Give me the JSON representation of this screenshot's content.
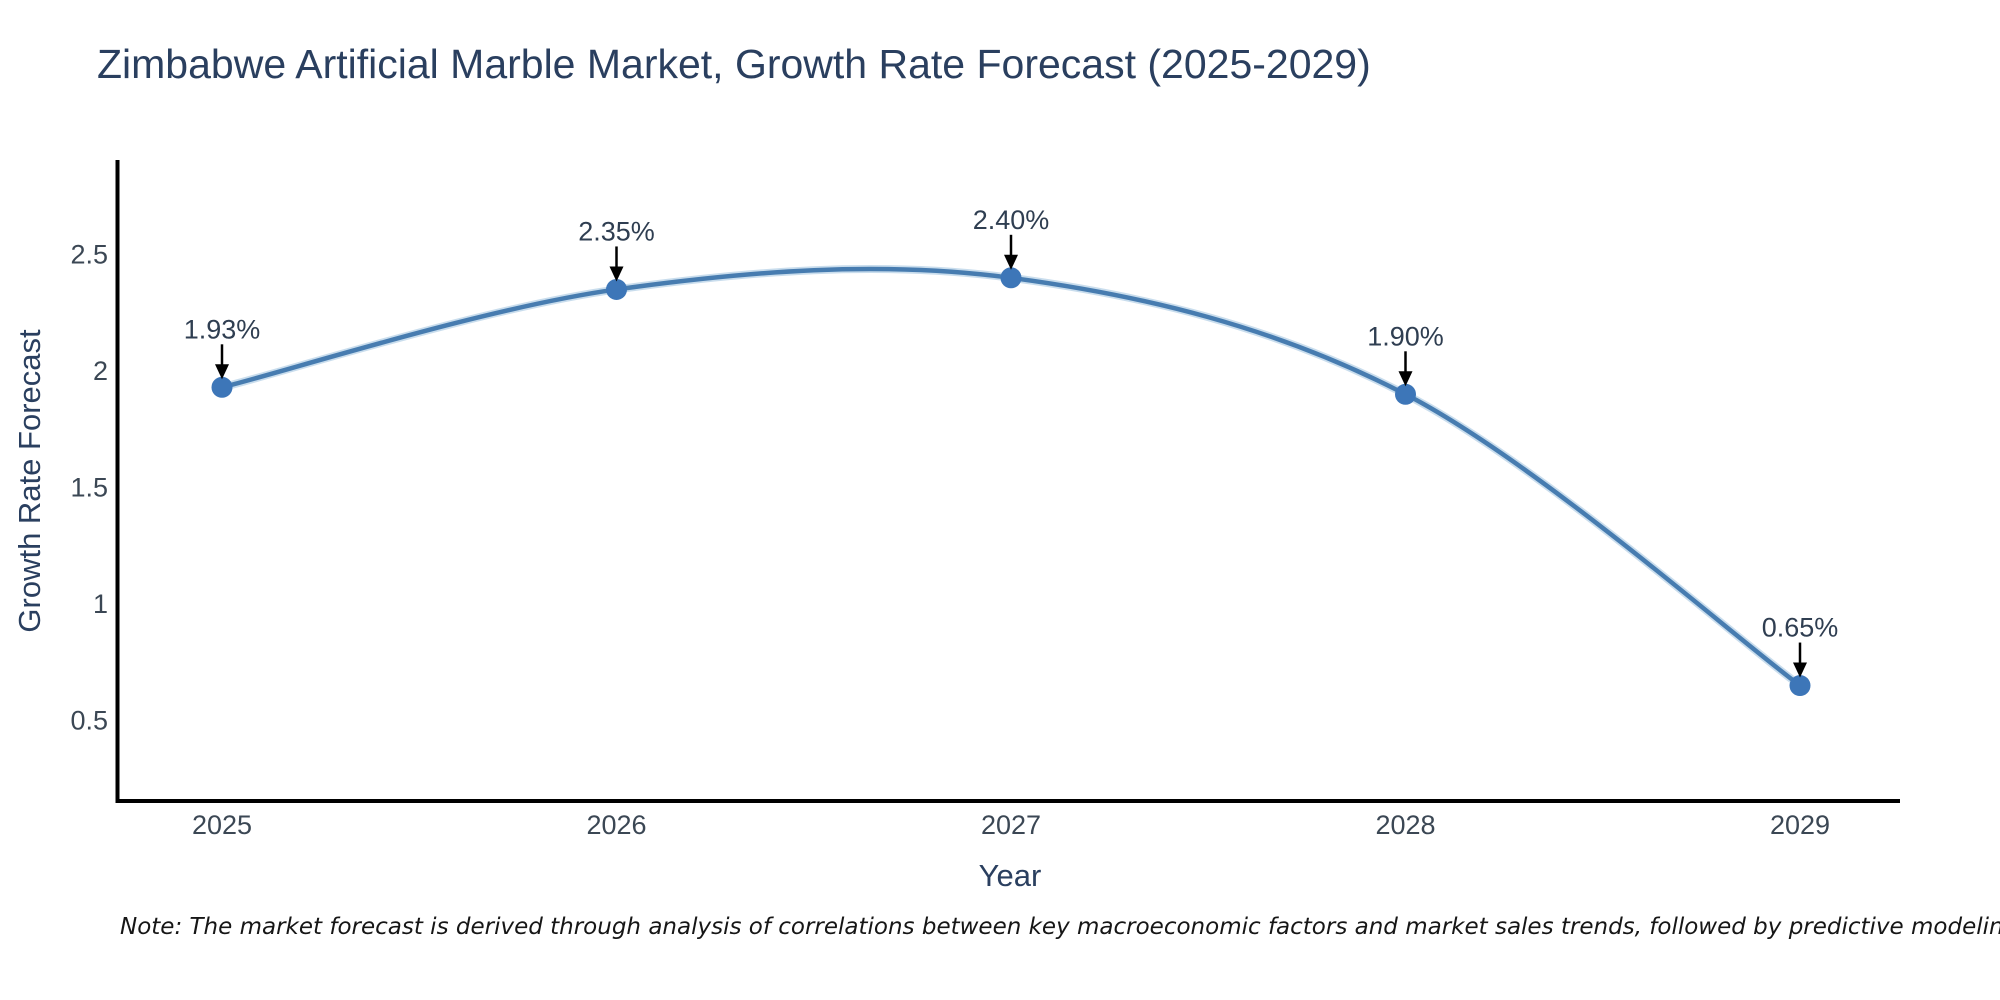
{
  "page": {
    "background": "#ffffff"
  },
  "chart_data": {
    "type": "line",
    "line_shape": "spline",
    "title": "Zimbabwe Artificial Marble Market, Growth Rate Forecast (2025-2029)",
    "xlabel": "Year",
    "ylabel": "Growth Rate Forecast",
    "categories": [
      "2025",
      "2026",
      "2027",
      "2028",
      "2029"
    ],
    "values": [
      1.93,
      2.35,
      2.4,
      1.9,
      0.65
    ],
    "point_labels": [
      "1.93%",
      "2.35%",
      "2.40%",
      "1.90%",
      "0.65%"
    ],
    "ytick_labels": [
      "0.5",
      "1",
      "1.5",
      "2",
      "2.5"
    ],
    "ylim": [
      0.15,
      2.9
    ],
    "grid": false,
    "legend": "none",
    "annotations": "black arrow pointing down from each percentage label to its data point",
    "colors": {
      "line": "#477cb0",
      "line_halo": "#9cc1de",
      "marker": "#3d76b8",
      "axis": "#000000",
      "title_text": "#2a3f5f",
      "tick_text": "#3b4754",
      "annotation_text": "#2f3e51"
    },
    "note": "Note: The market forecast is derived through analysis of correlations between key macroeconomic factors and market sales trends, followed by predictive modeling to project future sales"
  }
}
